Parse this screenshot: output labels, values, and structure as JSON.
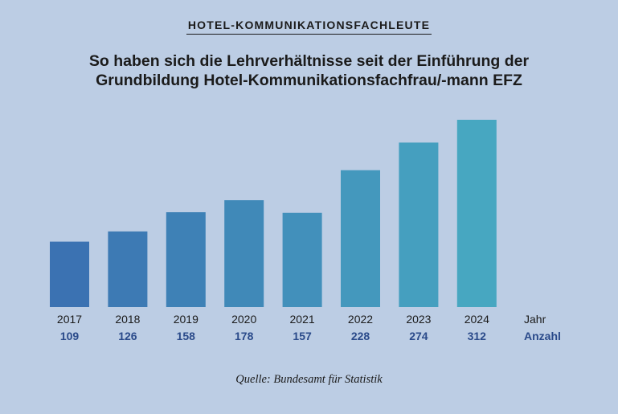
{
  "header": {
    "kicker": "Hotel-Kommunikationsfachleute",
    "title_line1": "So haben sich die Lehrverhältnisse seit der Einführung der",
    "title_line2": "Grundbildung Hotel-Kommunikationsfachfrau/-mann EFZ"
  },
  "footer": {
    "source": "Quelle: Bundesamt für Statistik"
  },
  "chart_data": {
    "type": "bar",
    "categories": [
      "2017",
      "2018",
      "2019",
      "2020",
      "2021",
      "2022",
      "2023",
      "2024"
    ],
    "values": [
      109,
      126,
      158,
      178,
      157,
      228,
      274,
      312
    ],
    "row_labels": {
      "categories": "Jahr",
      "values": "Anzahl"
    },
    "colors": {
      "bar_start": "#3b72b2",
      "bar_end": "#47a7c1",
      "value_text": "#2a4a8a",
      "axis_text": "#1b1b1b"
    },
    "ylim": [
      0,
      320
    ],
    "grid": false,
    "legend": "none"
  }
}
